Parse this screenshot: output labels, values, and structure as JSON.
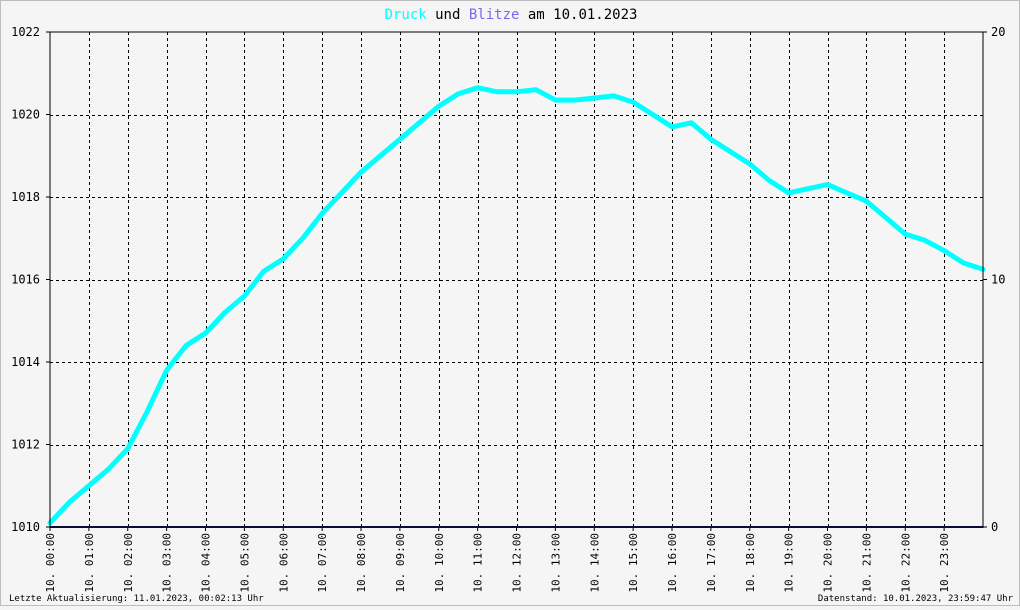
{
  "title": {
    "part1": "Druck",
    "part2": "und",
    "part3": "Blitze",
    "part4": "am 10.01.2023",
    "color_druck": "#00ffff",
    "color_blitze": "#7b68ee"
  },
  "footer": {
    "left": "Letzte Aktualisierung: 11.01.2023, 00:02:13 Uhr",
    "right": "Datenstand: 10.01.2023, 23:59:47 Uhr"
  },
  "chart_data": {
    "type": "line",
    "x_tick_labels": [
      "10. 00:00",
      "10. 01:00",
      "10. 02:00",
      "10. 03:00",
      "10. 04:00",
      "10. 05:00",
      "10. 06:00",
      "10. 07:00",
      "10. 08:00",
      "10. 09:00",
      "10. 10:00",
      "10. 11:00",
      "10. 12:00",
      "10. 13:00",
      "10. 14:00",
      "10. 15:00",
      "10. 16:00",
      "10. 17:00",
      "10. 18:00",
      "10. 19:00",
      "10. 20:00",
      "10. 21:00",
      "10. 22:00",
      "10. 23:00"
    ],
    "xlim_hours": [
      0,
      24
    ],
    "y_left_lim": [
      1010,
      1022
    ],
    "y_left_ticks": [
      1010,
      1012,
      1014,
      1016,
      1018,
      1020,
      1022
    ],
    "y_right_lim": [
      0,
      20
    ],
    "y_right_ticks": [
      0,
      10,
      20
    ],
    "grid": true,
    "series": [
      {
        "name": "Druck",
        "axis": "left",
        "color": "#00ffff",
        "hours": [
          0.0,
          0.5,
          1.0,
          1.5,
          2.0,
          2.5,
          3.0,
          3.5,
          4.0,
          4.5,
          5.0,
          5.5,
          6.0,
          6.5,
          7.0,
          7.5,
          8.0,
          8.5,
          9.0,
          9.5,
          10.0,
          10.5,
          11.0,
          11.5,
          12.0,
          12.5,
          13.0,
          13.5,
          14.0,
          14.5,
          15.0,
          15.5,
          16.0,
          16.5,
          17.0,
          17.5,
          18.0,
          18.5,
          19.0,
          19.5,
          20.0,
          20.5,
          21.0,
          21.5,
          22.0,
          22.5,
          23.0,
          23.5,
          24.0
        ],
        "values": [
          1010.1,
          1010.6,
          1011.0,
          1011.4,
          1011.9,
          1012.8,
          1013.8,
          1014.4,
          1014.7,
          1015.2,
          1015.6,
          1016.2,
          1016.5,
          1017.0,
          1017.6,
          1018.1,
          1018.6,
          1019.0,
          1019.4,
          1019.8,
          1020.2,
          1020.5,
          1020.65,
          1020.55,
          1020.55,
          1020.6,
          1020.35,
          1020.35,
          1020.4,
          1020.45,
          1020.3,
          1020.0,
          1019.7,
          1019.8,
          1019.4,
          1019.1,
          1018.8,
          1018.4,
          1018.1,
          1018.2,
          1018.3,
          1018.1,
          1017.9,
          1017.5,
          1017.1,
          1016.95,
          1016.7,
          1016.4,
          1016.25
        ]
      },
      {
        "name": "Blitze",
        "axis": "right",
        "color": "#191970",
        "hours": [
          0,
          24
        ],
        "values": [
          0,
          0
        ]
      }
    ]
  }
}
